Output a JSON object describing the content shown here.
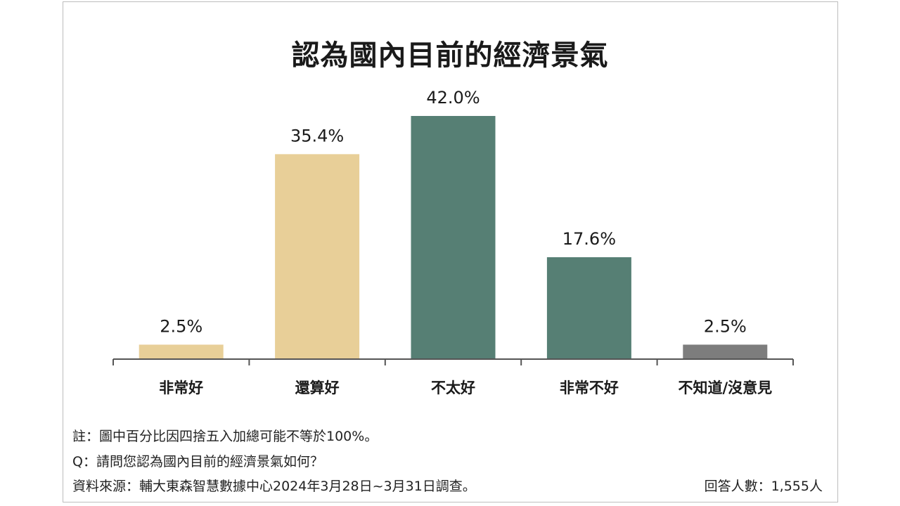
{
  "chart_data": {
    "type": "bar",
    "title": "認為國內目前的經濟景氣",
    "categories": [
      "非常好",
      "還算好",
      "不太好",
      "非常不好",
      "不知道/沒意見"
    ],
    "values": [
      2.5,
      35.4,
      42.0,
      17.6,
      2.5
    ],
    "value_labels": [
      "2.5%",
      "35.4%",
      "42.0%",
      "17.6%",
      "2.5%"
    ],
    "colors": [
      "#e8cf98",
      "#e8cf98",
      "#567f74",
      "#567f74",
      "#7d7d7d"
    ],
    "ylim": [
      0,
      45
    ],
    "grid": false,
    "legend": "none"
  },
  "notes": {
    "note": "註：圖中百分比因四捨五入加總可能不等於100%。",
    "question": "Q：請問您認為國內目前的經濟景氣如何？",
    "source": "資料來源：輔大東森智慧數據中心2024年3月28日~3月31日調查。",
    "respondents": "回答人數：1,555人"
  }
}
